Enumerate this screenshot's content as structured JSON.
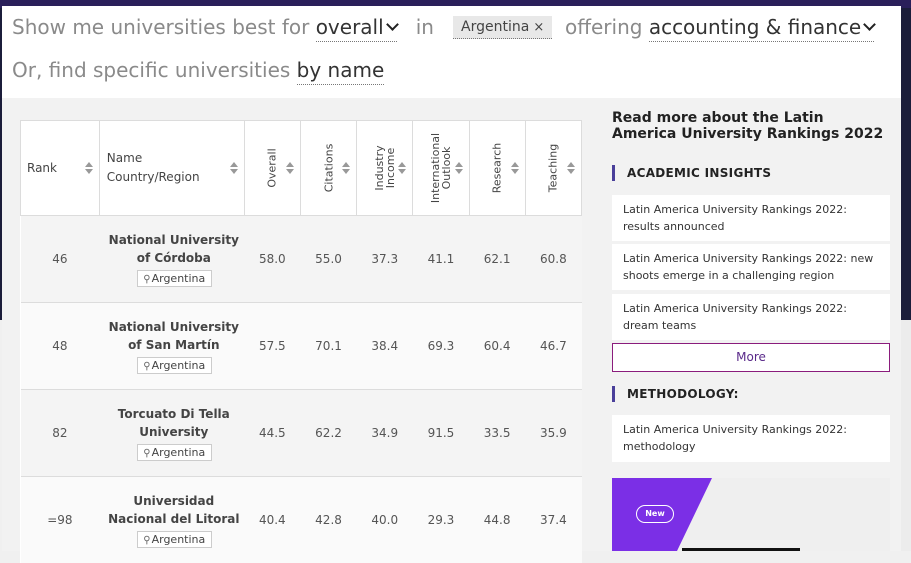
{
  "filters": {
    "prefix": "Show me universities best for",
    "criterion": "overall",
    "in_label": "in",
    "country_chip": "Argentina",
    "chip_remove": "×",
    "offering_label": "offering",
    "subject": "accounting & finance",
    "line2_prefix": "Or, find specific universities",
    "by_name": "by name"
  },
  "table": {
    "headers": {
      "rank": "Rank",
      "name": "Name",
      "country": "Country/Region",
      "overall": "Overall",
      "citations": "Citations",
      "industry_1": "Industry",
      "industry_2": "Income",
      "intl_1": "International",
      "intl_2": "Outlook",
      "research": "Research",
      "teaching": "Teaching"
    },
    "rows": [
      {
        "rank": "46",
        "name": "National University of Córdoba",
        "country": "Argentina",
        "overall": "58.0",
        "citations": "55.0",
        "industry": "37.3",
        "intl": "41.1",
        "research": "62.1",
        "teaching": "60.8"
      },
      {
        "rank": "48",
        "name": "National University of San Martín",
        "country": "Argentina",
        "overall": "57.5",
        "citations": "70.1",
        "industry": "38.4",
        "intl": "69.3",
        "research": "60.4",
        "teaching": "46.7"
      },
      {
        "rank": "82",
        "name": "Torcuato Di Tella University",
        "country": "Argentina",
        "overall": "44.5",
        "citations": "62.2",
        "industry": "34.9",
        "intl": "91.5",
        "research": "33.5",
        "teaching": "35.9"
      },
      {
        "rank": "=98",
        "name": "Universidad Nacional del Litoral",
        "country": "Argentina",
        "overall": "40.4",
        "citations": "42.8",
        "industry": "40.0",
        "intl": "29.3",
        "research": "44.8",
        "teaching": "37.4"
      }
    ]
  },
  "sidebar": {
    "heading": "Read more about the Latin America University Rankings 2022",
    "academic_title": "ACADEMIC INSIGHTS",
    "articles": [
      "Latin America University Rankings 2022: results announced",
      "Latin America University Rankings 2022: new shoots emerge in a challenging region",
      "Latin America University Rankings 2022: dream teams"
    ],
    "more": "More",
    "method_title": "METHODOLOGY:",
    "method_article": "Latin America University Rankings 2022: methodology",
    "promo_badge": "New"
  },
  "colors": {
    "accent": "#8a1c7c",
    "promo": "#7b2fe6",
    "header_bg": "#1b1d3a"
  }
}
